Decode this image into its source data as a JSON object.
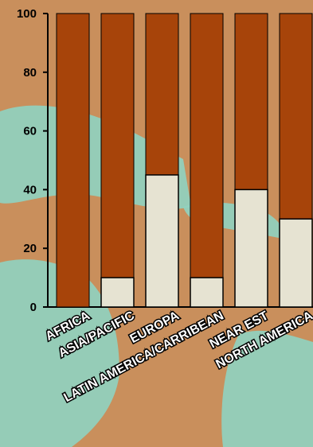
{
  "chart_data": {
    "type": "bar",
    "stacked": true,
    "categories": [
      "AFRICA",
      "ASIA/PACIFIC",
      "EUROPA",
      "LATIN AMERICA/CARRIBEAN",
      "NEAR EST",
      "NORTH AMERICA"
    ],
    "series": [
      {
        "values": [
          0,
          10,
          45,
          10,
          40,
          30
        ]
      },
      {
        "values": [
          100,
          90,
          55,
          90,
          60,
          70
        ]
      }
    ],
    "yticks": [
      0,
      20,
      40,
      60,
      80,
      100
    ],
    "ylim": [
      0,
      100
    ],
    "grid": false,
    "title": "",
    "xlabel": "",
    "ylabel": "",
    "colors": {
      "lower": "#e6e3d2",
      "upper": "#a7440a",
      "background": "#c98f5c",
      "water": "#8fd3c1"
    }
  }
}
